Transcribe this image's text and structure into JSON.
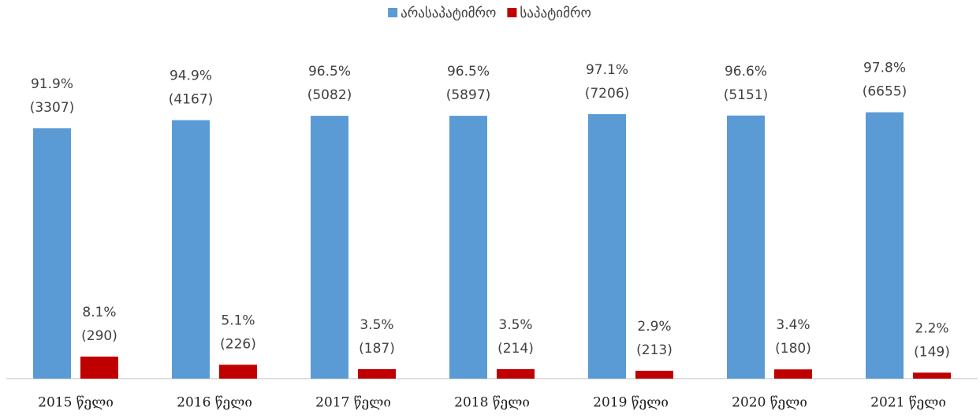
{
  "chart_data": {
    "type": "bar",
    "categories": [
      "2015 წელი",
      "2016 წელი",
      "2017 წელი",
      "2018 წელი",
      "2019 წელი",
      "2020 წელი",
      "2021 წელი"
    ],
    "series": [
      {
        "name": "არასაპატიმრო",
        "color": "#5b9bd5",
        "values": [
          91.9,
          94.9,
          96.5,
          96.5,
          97.1,
          96.6,
          97.8
        ],
        "value_labels": [
          [
            "91.9%",
            "(3307)"
          ],
          [
            "94.9%",
            "(4167)"
          ],
          [
            "96.5%",
            "(5082)"
          ],
          [
            "96.5%",
            "(5897)"
          ],
          [
            "97.1%",
            "(7206)"
          ],
          [
            "96.6%",
            "(5151)"
          ],
          [
            "97.8%",
            "(6655)"
          ]
        ]
      },
      {
        "name": "საპატიმრო",
        "color": "#c00000",
        "values": [
          8.1,
          5.1,
          3.5,
          3.5,
          2.9,
          3.4,
          2.2
        ],
        "value_labels": [
          [
            "8.1%",
            "(290)"
          ],
          [
            "5.1%",
            "(226)"
          ],
          [
            "3.5%",
            "(187)"
          ],
          [
            "3.5%",
            "(214)"
          ],
          [
            "2.9%",
            "(213)"
          ],
          [
            "3.4%",
            "(180)"
          ],
          [
            "2.2%",
            "(149)"
          ]
        ]
      }
    ],
    "ylim": [
      0,
      100
    ],
    "grid": false,
    "legend": "top"
  }
}
